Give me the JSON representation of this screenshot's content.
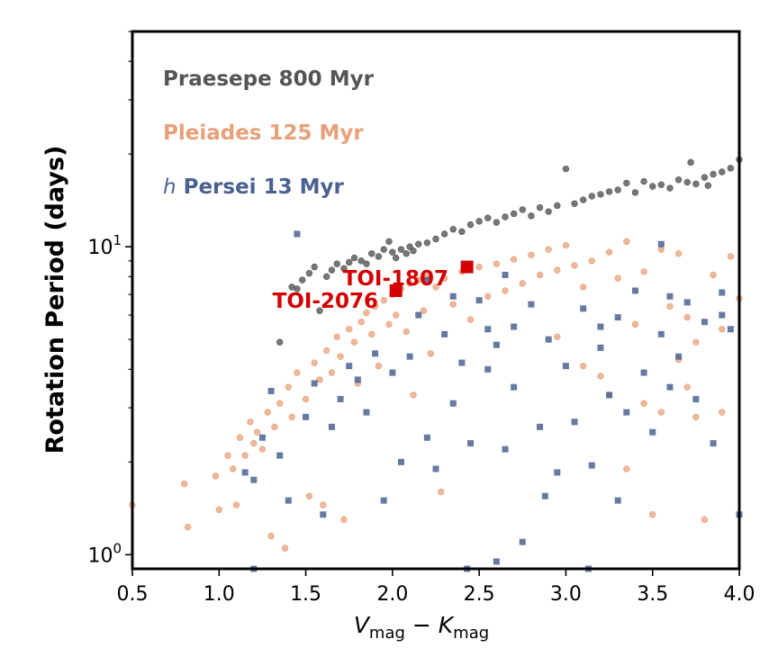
{
  "chart_data": {
    "type": "scatter",
    "title": "",
    "xlabel": {
      "main1": "V",
      "sub1": "mag",
      "op": " − ",
      "main2": "K",
      "sub2": "mag"
    },
    "ylabel": "Rotation Period (days)",
    "xlim": [
      0.5,
      4.0
    ],
    "ylim": [
      0.9,
      50
    ],
    "yscale": "log",
    "xticks": [
      0.5,
      1.0,
      1.5,
      2.0,
      2.5,
      3.0,
      3.5,
      4.0
    ],
    "xtick_labels": [
      "0.5",
      "1.0",
      "1.5",
      "2.0",
      "2.5",
      "3.0",
      "3.5",
      "4.0"
    ],
    "yticks_major": [
      {
        "value": 1,
        "base": "10",
        "exp": "0"
      },
      {
        "value": 10,
        "base": "10",
        "exp": "1"
      }
    ],
    "legend_placement": "top-left",
    "series": [
      {
        "name": "Praesepe 800 Myr",
        "label_prefix": "",
        "label_rest": "Praesepe 800 Myr",
        "color": "#555555",
        "marker": "circle",
        "points": [
          [
            1.35,
            4.9
          ],
          [
            1.42,
            7.4
          ],
          [
            1.45,
            7.3
          ],
          [
            1.48,
            7.8
          ],
          [
            1.52,
            8.2
          ],
          [
            1.55,
            8.6
          ],
          [
            1.58,
            6.2
          ],
          [
            1.62,
            8.0
          ],
          [
            1.65,
            8.4
          ],
          [
            1.68,
            8.8
          ],
          [
            1.72,
            8.5
          ],
          [
            1.75,
            8.9
          ],
          [
            1.78,
            9.2
          ],
          [
            1.82,
            9.0
          ],
          [
            1.85,
            8.8
          ],
          [
            1.88,
            9.5
          ],
          [
            1.92,
            9.3
          ],
          [
            1.95,
            9.8
          ],
          [
            1.98,
            10.4
          ],
          [
            2.0,
            9.6
          ],
          [
            2.02,
            9.2
          ],
          [
            2.05,
            9.8
          ],
          [
            2.08,
            9.5
          ],
          [
            2.1,
            10.0
          ],
          [
            2.12,
            9.7
          ],
          [
            2.15,
            10.2
          ],
          [
            2.2,
            10.3
          ],
          [
            2.25,
            10.6
          ],
          [
            2.3,
            11.0
          ],
          [
            2.35,
            11.4
          ],
          [
            2.4,
            11.2
          ],
          [
            2.45,
            11.8
          ],
          [
            2.5,
            12.1
          ],
          [
            2.55,
            12.4
          ],
          [
            2.6,
            12.0
          ],
          [
            2.65,
            12.5
          ],
          [
            2.7,
            12.8
          ],
          [
            2.75,
            13.2
          ],
          [
            2.8,
            12.6
          ],
          [
            2.85,
            13.4
          ],
          [
            2.9,
            13.0
          ],
          [
            2.95,
            13.6
          ],
          [
            3.0,
            17.9
          ],
          [
            3.05,
            13.8
          ],
          [
            3.1,
            14.2
          ],
          [
            3.15,
            14.6
          ],
          [
            3.2,
            14.8
          ],
          [
            3.25,
            15.1
          ],
          [
            3.3,
            15.3
          ],
          [
            3.35,
            16.1
          ],
          [
            3.4,
            15.0
          ],
          [
            3.45,
            16.3
          ],
          [
            3.5,
            15.7
          ],
          [
            3.55,
            15.9
          ],
          [
            3.6,
            15.5
          ],
          [
            3.65,
            16.5
          ],
          [
            3.7,
            16.2
          ],
          [
            3.72,
            18.8
          ],
          [
            3.75,
            16.0
          ],
          [
            3.8,
            16.8
          ],
          [
            3.82,
            15.8
          ],
          [
            3.85,
            17.2
          ],
          [
            3.9,
            17.5
          ],
          [
            3.95,
            18.0
          ],
          [
            4.0,
            19.2
          ]
        ]
      },
      {
        "name": "Pleiades 125 Myr",
        "label_prefix": "",
        "label_rest": "Pleiades 125 Myr",
        "color": "#e8a07a",
        "marker": "circle",
        "points": [
          [
            0.5,
            1.45
          ],
          [
            0.8,
            1.7
          ],
          [
            0.82,
            1.23
          ],
          [
            0.98,
            1.8
          ],
          [
            1.0,
            1.4
          ],
          [
            1.05,
            2.1
          ],
          [
            1.08,
            1.9
          ],
          [
            1.1,
            1.45
          ],
          [
            1.12,
            2.4
          ],
          [
            1.15,
            2.1
          ],
          [
            1.18,
            2.7
          ],
          [
            1.2,
            2.3
          ],
          [
            1.22,
            2.5
          ],
          [
            1.25,
            2.2
          ],
          [
            1.28,
            2.9
          ],
          [
            1.3,
            1.15
          ],
          [
            1.32,
            2.6
          ],
          [
            1.35,
            3.1
          ],
          [
            1.38,
            1.05
          ],
          [
            1.4,
            3.5
          ],
          [
            1.42,
            2.8
          ],
          [
            1.45,
            3.9
          ],
          [
            1.5,
            3.2
          ],
          [
            1.52,
            1.55
          ],
          [
            1.55,
            4.2
          ],
          [
            1.58,
            3.7
          ],
          [
            1.6,
            1.45
          ],
          [
            1.62,
            4.6
          ],
          [
            1.65,
            3.9
          ],
          [
            1.68,
            5.1
          ],
          [
            1.7,
            4.4
          ],
          [
            1.72,
            1.3
          ],
          [
            1.75,
            5.4
          ],
          [
            1.78,
            4.9
          ],
          [
            1.8,
            3.6
          ],
          [
            1.82,
            5.7
          ],
          [
            1.85,
            6.1
          ],
          [
            1.88,
            5.2
          ],
          [
            1.9,
            6.4
          ],
          [
            1.92,
            4.1
          ],
          [
            1.95,
            6.7
          ],
          [
            1.98,
            5.6
          ],
          [
            2.0,
            7.0
          ],
          [
            2.02,
            6.0
          ],
          [
            2.05,
            7.3
          ],
          [
            2.08,
            5.3
          ],
          [
            2.1,
            7.6
          ],
          [
            2.12,
            3.3
          ],
          [
            2.15,
            7.8
          ],
          [
            2.18,
            6.2
          ],
          [
            2.2,
            8.0
          ],
          [
            2.22,
            4.5
          ],
          [
            2.25,
            7.4
          ],
          [
            2.28,
            1.6
          ],
          [
            2.3,
            7.9
          ],
          [
            2.35,
            6.5
          ],
          [
            2.4,
            8.3
          ],
          [
            2.45,
            5.8
          ],
          [
            2.5,
            8.6
          ],
          [
            2.55,
            6.9
          ],
          [
            2.6,
            8.8
          ],
          [
            2.65,
            7.2
          ],
          [
            2.7,
            9.1
          ],
          [
            2.75,
            7.6
          ],
          [
            2.8,
            9.4
          ],
          [
            2.85,
            8.1
          ],
          [
            2.9,
            9.8
          ],
          [
            2.95,
            8.4
          ],
          [
            3.0,
            10.1
          ],
          [
            3.05,
            8.7
          ],
          [
            3.1,
            7.4
          ],
          [
            3.15,
            9.0
          ],
          [
            3.2,
            3.8
          ],
          [
            3.25,
            9.6
          ],
          [
            3.3,
            7.9
          ],
          [
            3.35,
            10.4
          ],
          [
            3.4,
            5.6
          ],
          [
            3.45,
            8.3
          ],
          [
            3.5,
            1.35
          ],
          [
            3.55,
            9.8
          ],
          [
            3.6,
            6.4
          ],
          [
            3.65,
            9.5
          ],
          [
            3.7,
            5.9
          ],
          [
            3.75,
            4.9
          ],
          [
            3.8,
            1.3
          ],
          [
            3.85,
            8.1
          ],
          [
            3.9,
            2.9
          ],
          [
            3.95,
            9.3
          ],
          [
            4.0,
            6.8
          ],
          [
            3.25,
            3.3
          ],
          [
            3.45,
            3.1
          ],
          [
            3.65,
            4.3
          ],
          [
            3.1,
            4.1
          ],
          [
            3.75,
            2.8
          ],
          [
            2.95,
            5.1
          ],
          [
            3.9,
            5.4
          ],
          [
            3.35,
            1.9
          ],
          [
            3.55,
            2.9
          ],
          [
            3.7,
            3.5
          ]
        ]
      },
      {
        "name": "h Persei 13 Myr",
        "label_prefix": "h",
        "label_rest": " Persei 13 Myr",
        "color": "#4a6290",
        "marker": "square",
        "points": [
          [
            1.15,
            1.85
          ],
          [
            1.2,
            1.75
          ],
          [
            1.25,
            2.4
          ],
          [
            1.3,
            3.4
          ],
          [
            1.35,
            2.1
          ],
          [
            1.4,
            1.5
          ],
          [
            1.45,
            11.0
          ],
          [
            1.5,
            2.8
          ],
          [
            1.55,
            3.6
          ],
          [
            1.6,
            1.35
          ],
          [
            1.65,
            2.6
          ],
          [
            1.7,
            3.2
          ],
          [
            1.75,
            4.1
          ],
          [
            1.8,
            3.7
          ],
          [
            1.85,
            2.9
          ],
          [
            1.9,
            4.5
          ],
          [
            1.95,
            1.5
          ],
          [
            2.0,
            3.9
          ],
          [
            2.05,
            2.0
          ],
          [
            2.1,
            4.4
          ],
          [
            2.15,
            6.0
          ],
          [
            2.2,
            2.4
          ],
          [
            2.25,
            1.9
          ],
          [
            2.3,
            5.2
          ],
          [
            2.35,
            3.1
          ],
          [
            2.4,
            4.2
          ],
          [
            2.45,
            2.3
          ],
          [
            2.5,
            6.7
          ],
          [
            2.55,
            5.4
          ],
          [
            2.6,
            4.8
          ],
          [
            2.65,
            2.2
          ],
          [
            2.7,
            3.5
          ],
          [
            2.75,
            1.1
          ],
          [
            2.8,
            6.5
          ],
          [
            2.85,
            2.6
          ],
          [
            2.9,
            5.0
          ],
          [
            2.95,
            1.85
          ],
          [
            3.0,
            4.1
          ],
          [
            3.05,
            2.7
          ],
          [
            3.1,
            6.3
          ],
          [
            3.15,
            1.95
          ],
          [
            3.2,
            4.7
          ],
          [
            3.25,
            3.3
          ],
          [
            3.3,
            5.9
          ],
          [
            3.35,
            2.9
          ],
          [
            3.4,
            7.2
          ],
          [
            3.45,
            3.9
          ],
          [
            3.5,
            2.5
          ],
          [
            3.55,
            5.2
          ],
          [
            3.6,
            3.5
          ],
          [
            3.65,
            4.4
          ],
          [
            3.7,
            6.6
          ],
          [
            3.75,
            3.2
          ],
          [
            3.8,
            5.7
          ],
          [
            3.85,
            2.3
          ],
          [
            3.9,
            6.0
          ],
          [
            3.95,
            5.4
          ],
          [
            4.0,
            1.35
          ],
          [
            2.88,
            1.55
          ],
          [
            2.6,
            0.95
          ],
          [
            3.13,
            0.9
          ],
          [
            2.43,
            0.9
          ],
          [
            1.2,
            0.9
          ],
          [
            2.2,
            7.8
          ],
          [
            3.55,
            10.2
          ],
          [
            2.65,
            8.1
          ],
          [
            2.35,
            6.9
          ],
          [
            3.2,
            5.5
          ],
          [
            3.6,
            6.9
          ],
          [
            3.9,
            7.1
          ],
          [
            3.3,
            1.5
          ],
          [
            2.7,
            5.5
          ],
          [
            2.55,
            4.0
          ]
        ]
      }
    ],
    "annotations": [
      {
        "label": "TOI-1807",
        "x": 2.43,
        "y": 8.6,
        "color": "#d40000",
        "marker": "square"
      },
      {
        "label": "TOI-2076",
        "x": 2.02,
        "y": 7.2,
        "color": "#d40000",
        "marker": "square"
      }
    ]
  }
}
